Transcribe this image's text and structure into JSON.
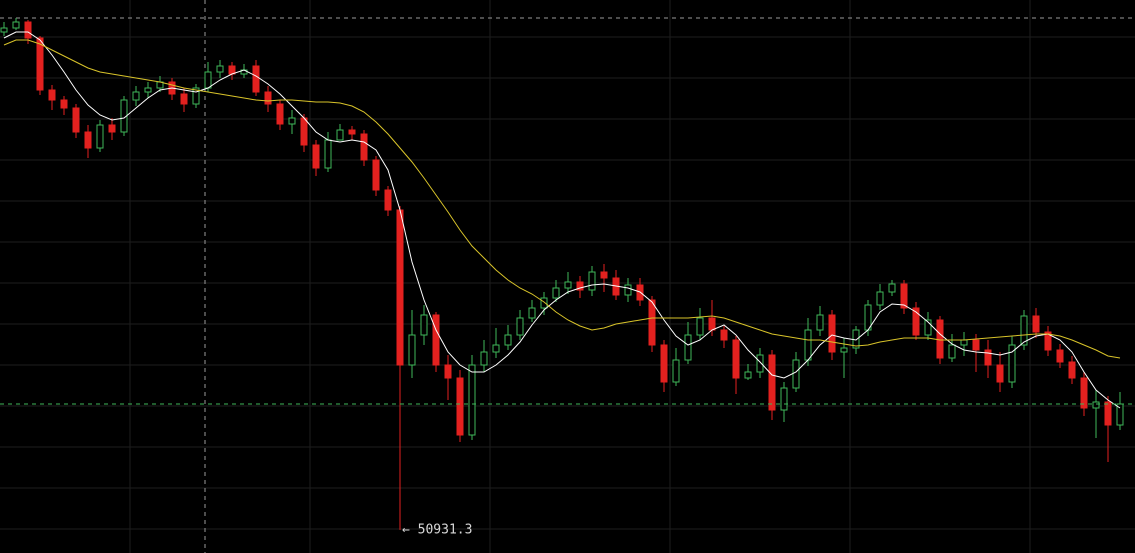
{
  "chart_data": {
    "type": "candlestick",
    "up_color": "#3fb85a",
    "down_color": "#e3211f",
    "grid": true,
    "ylim": [
      50700,
      56230
    ],
    "yticks": [
      55860,
      55450,
      55040,
      54630,
      54220,
      53810,
      53400,
      52990,
      52580,
      52170,
      51760,
      51350,
      50940
    ],
    "open": [
      55910,
      55950,
      56010,
      55850,
      55330,
      55230,
      55150,
      54910,
      54750,
      54980,
      54910,
      55230,
      55310,
      55350,
      55410,
      55290,
      55190,
      55350,
      55510,
      55570,
      55490,
      55570,
      55310,
      55190,
      54990,
      55050,
      54780,
      54550,
      54830,
      54930,
      54890,
      54630,
      54330,
      54130,
      52580,
      52880,
      53080,
      52580,
      52450,
      51880,
      52580,
      52710,
      52780,
      52880,
      53050,
      53150,
      53250,
      53350,
      53410,
      53330,
      53510,
      53450,
      53280,
      53380,
      53230,
      52780,
      52410,
      52630,
      52880,
      53050,
      52930,
      52830,
      52450,
      52510,
      52680,
      52130,
      52350,
      52630,
      52930,
      53080,
      52710,
      52750,
      52930,
      53180,
      53310,
      53390,
      53150,
      52880,
      53030,
      52650,
      52780,
      52830,
      52730,
      52580,
      52410,
      52780,
      53070,
      52910,
      52730,
      52610,
      52450,
      52150,
      52210,
      51980
    ],
    "high": [
      56010,
      56050,
      56030,
      55870,
      55380,
      55270,
      55190,
      54980,
      55030,
      55050,
      55270,
      55370,
      55410,
      55470,
      55450,
      55350,
      55390,
      55610,
      55630,
      55610,
      55590,
      55630,
      55370,
      55230,
      55130,
      55090,
      54830,
      54910,
      54990,
      54970,
      54930,
      54670,
      54370,
      54170,
      53130,
      53180,
      53110,
      52680,
      52530,
      52680,
      52830,
      52950,
      52980,
      53130,
      53230,
      53310,
      53430,
      53510,
      53470,
      53570,
      53590,
      53530,
      53450,
      53450,
      53270,
      52830,
      52750,
      53010,
      53150,
      53230,
      52970,
      52870,
      52590,
      52750,
      52730,
      52410,
      52710,
      53050,
      53170,
      53130,
      52850,
      52970,
      53230,
      53390,
      53430,
      53430,
      53210,
      53110,
      53070,
      52890,
      52910,
      52890,
      52830,
      52710,
      52870,
      53130,
      53150,
      52970,
      52790,
      52670,
      52510,
      52330,
      52270,
      52310
    ],
    "low": [
      55870,
      55930,
      55790,
      55280,
      55130,
      55080,
      54850,
      54650,
      54710,
      54830,
      54870,
      55170,
      55250,
      55310,
      55230,
      55110,
      55150,
      55310,
      55450,
      55430,
      55450,
      55270,
      55110,
      54930,
      54890,
      54710,
      54470,
      54510,
      54850,
      54830,
      54570,
      54270,
      54070,
      50931.3,
      52450,
      52780,
      52510,
      52230,
      51810,
      51830,
      52510,
      52650,
      52730,
      52830,
      53010,
      53080,
      53210,
      53290,
      53250,
      53270,
      53310,
      53230,
      53210,
      53170,
      52710,
      52310,
      52370,
      52590,
      52830,
      52870,
      52750,
      52290,
      52430,
      52450,
      52030,
      52010,
      52310,
      52570,
      52870,
      52630,
      52450,
      52690,
      52870,
      53130,
      53270,
      53090,
      52830,
      52830,
      52590,
      52610,
      52670,
      52510,
      52450,
      52310,
      52350,
      52730,
      52850,
      52670,
      52550,
      52390,
      52070,
      51850,
      51610,
      51930
    ],
    "close": [
      55950,
      56010,
      55850,
      55330,
      55230,
      55150,
      54910,
      54750,
      54980,
      54910,
      55230,
      55310,
      55350,
      55410,
      55290,
      55190,
      55350,
      55510,
      55570,
      55490,
      55530,
      55310,
      55190,
      54990,
      55050,
      54780,
      54550,
      54830,
      54930,
      54890,
      54630,
      54330,
      54130,
      52580,
      52880,
      53080,
      52580,
      52450,
      51880,
      52580,
      52710,
      52780,
      52880,
      53050,
      53150,
      53250,
      53350,
      53410,
      53330,
      53510,
      53450,
      53280,
      53380,
      53230,
      52780,
      52410,
      52630,
      52880,
      53050,
      52930,
      52830,
      52450,
      52510,
      52680,
      52130,
      52350,
      52630,
      52930,
      53080,
      52710,
      52750,
      52930,
      53180,
      53310,
      53390,
      53150,
      52880,
      53030,
      52650,
      52780,
      52830,
      52730,
      52580,
      52410,
      52780,
      53070,
      52910,
      52730,
      52610,
      52450,
      52150,
      52210,
      51980,
      52190
    ],
    "low_label": "← 50931.3",
    "ma": [
      {
        "color": "#ffffff",
        "values": [
          55850,
          55910,
          55910,
          55830,
          55680,
          55510,
          55330,
          55180,
          55080,
          55030,
          55050,
          55150,
          55250,
          55330,
          55350,
          55330,
          55310,
          55350,
          55430,
          55490,
          55530,
          55470,
          55390,
          55290,
          55170,
          55050,
          54910,
          54830,
          54810,
          54830,
          54810,
          54730,
          54530,
          54130,
          53610,
          53230,
          52930,
          52710,
          52580,
          52510,
          52510,
          52580,
          52680,
          52810,
          52980,
          53130,
          53230,
          53310,
          53350,
          53380,
          53390,
          53370,
          53350,
          53310,
          53210,
          53030,
          52870,
          52780,
          52830,
          52930,
          52980,
          52880,
          52730,
          52610,
          52480,
          52450,
          52510,
          52630,
          52780,
          52880,
          52850,
          52830,
          52930,
          53110,
          53190,
          53180,
          53110,
          53010,
          52890,
          52790,
          52730,
          52710,
          52700,
          52680,
          52710,
          52810,
          52870,
          52890,
          52830,
          52710,
          52510,
          52330,
          52230,
          52150
        ]
      },
      {
        "color": "#d9c42a",
        "values": [
          55780,
          55830,
          55830,
          55790,
          55730,
          55670,
          55610,
          55550,
          55510,
          55490,
          55470,
          55450,
          55430,
          55410,
          55380,
          55350,
          55330,
          55310,
          55290,
          55270,
          55250,
          55230,
          55220,
          55230,
          55230,
          55220,
          55210,
          55210,
          55200,
          55170,
          55110,
          55010,
          54890,
          54750,
          54610,
          54450,
          54280,
          54110,
          53930,
          53770,
          53650,
          53530,
          53430,
          53350,
          53290,
          53210,
          53110,
          53030,
          52970,
          52930,
          52950,
          52990,
          53010,
          53030,
          53050,
          53050,
          53050,
          53050,
          53060,
          53070,
          53050,
          53010,
          52970,
          52930,
          52890,
          52870,
          52850,
          52830,
          52830,
          52810,
          52790,
          52770,
          52780,
          52810,
          52830,
          52850,
          52850,
          52850,
          52830,
          52830,
          52830,
          52840,
          52850,
          52860,
          52870,
          52880,
          52890,
          52890,
          52870,
          52830,
          52780,
          52730,
          52670,
          52650
        ]
      }
    ]
  }
}
